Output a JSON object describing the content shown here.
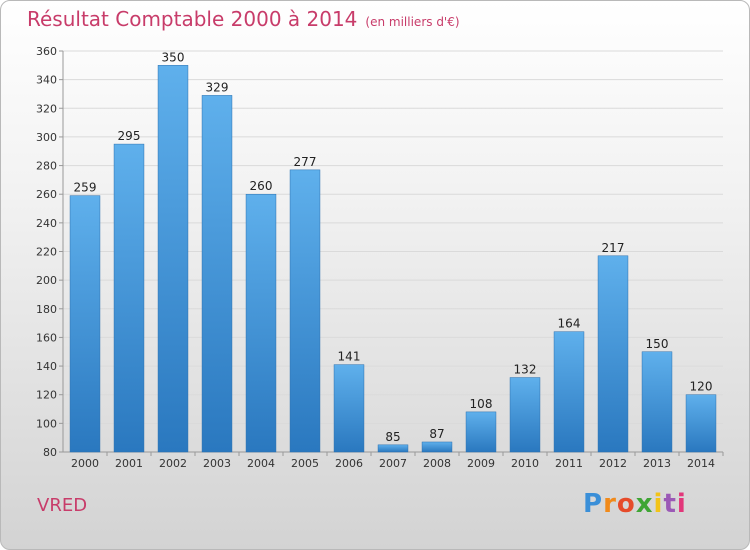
{
  "header": {
    "title": "Résultat Comptable 2000 à 2014",
    "subtitle": "(en milliers d'€)"
  },
  "footer": {
    "commune": "VRED",
    "logo_text": "Proxiti",
    "logo_colors": [
      "#3a8fd8",
      "#f18a1a",
      "#e64b2a",
      "#3fa535",
      "#f2c318",
      "#9b59b6",
      "#e2377a"
    ]
  },
  "colors": {
    "title": "#c83c6a",
    "bar_top": "#5fb0ec",
    "bar_bottom": "#2a78bf"
  },
  "chart_data": {
    "type": "bar",
    "categories": [
      "2000",
      "2001",
      "2002",
      "2003",
      "2004",
      "2005",
      "2006",
      "2007",
      "2008",
      "2009",
      "2010",
      "2011",
      "2012",
      "2013",
      "2014"
    ],
    "values": [
      259,
      295,
      350,
      329,
      260,
      277,
      141,
      85,
      87,
      108,
      132,
      164,
      217,
      150,
      120
    ],
    "title": "Résultat Comptable 2000 à 2014",
    "subtitle": "(en milliers d'€)",
    "xlabel": "",
    "ylabel": "",
    "ylim": [
      80,
      360
    ],
    "yticks": [
      80,
      100,
      120,
      140,
      160,
      180,
      200,
      220,
      240,
      260,
      280,
      300,
      320,
      340,
      360
    ],
    "grid": true,
    "data_labels": true
  }
}
